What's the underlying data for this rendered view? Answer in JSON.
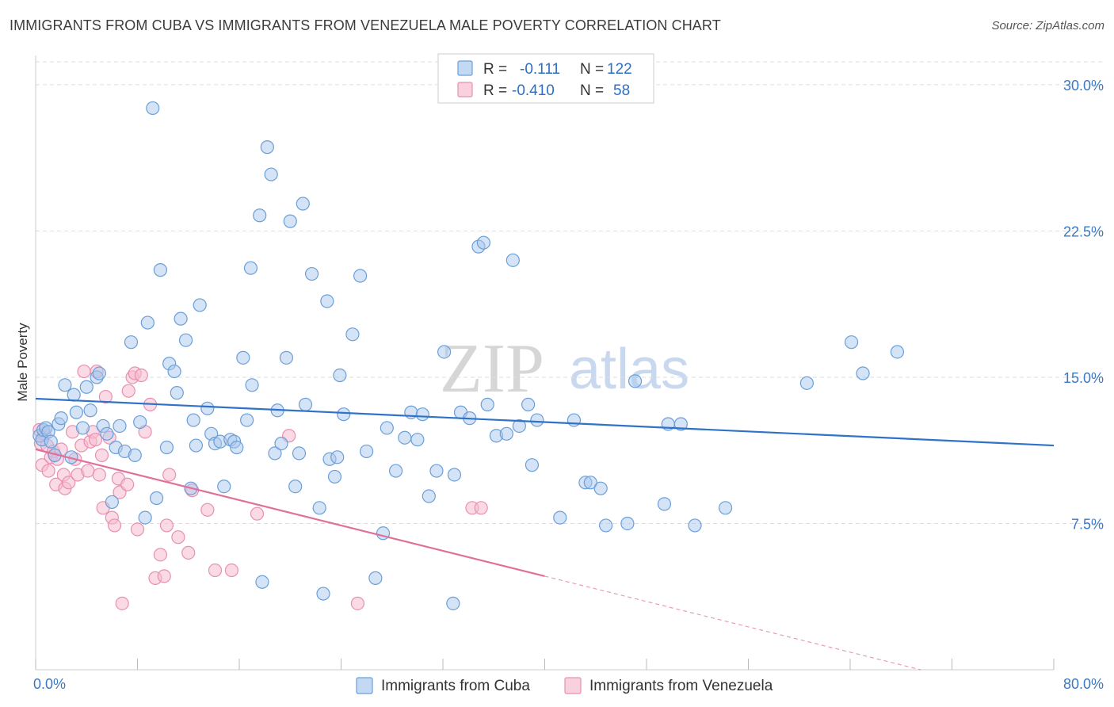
{
  "title": "IMMIGRANTS FROM CUBA VS IMMIGRANTS FROM VENEZUELA MALE POVERTY CORRELATION CHART",
  "source": "Source: ZipAtlas.com",
  "watermark": {
    "zip": "ZIP",
    "atlas": "atlas"
  },
  "colors": {
    "cuba_fill": "#a9c8ee",
    "cuba_stroke": "#6a9fd9",
    "cuba_line": "#2f72c8",
    "venezuela_fill": "#f5bcd0",
    "venezuela_stroke": "#e890b0",
    "venezuela_line": "#e0709a",
    "tick_label": "#3b78c4",
    "grid": "#dddddd"
  },
  "legend": {
    "rows": [
      {
        "r_label": "R =",
        "r_value": "-0.111",
        "n_label": "N =",
        "n_value": "122"
      },
      {
        "r_label": "R =",
        "r_value": "-0.410",
        "n_label": "N =",
        "n_value": "58"
      }
    ]
  },
  "bottom_legend": [
    "Immigrants from Cuba",
    "Immigrants from Venezuela"
  ],
  "chart_data": {
    "type": "scatter",
    "title": "IMMIGRANTS FROM CUBA VS IMMIGRANTS FROM VENEZUELA MALE POVERTY CORRELATION CHART",
    "xlabel": "",
    "ylabel": "Male Poverty",
    "xlim": [
      0,
      80
    ],
    "ylim": [
      0,
      31.5
    ],
    "x_tick_labels": [
      "0.0%",
      "80.0%"
    ],
    "y_ticks": [
      7.5,
      15.0,
      22.5,
      30.0
    ],
    "y_tick_labels": [
      "7.5%",
      "15.0%",
      "22.5%",
      "30.0%"
    ],
    "grid": true,
    "legend_position": "top-center",
    "series": [
      {
        "name": "Immigrants from Cuba",
        "r": -0.111,
        "n": 122,
        "trend": {
          "x": [
            0,
            80
          ],
          "y": [
            13.9,
            11.5
          ]
        },
        "points": [
          [
            0.3,
            12.0
          ],
          [
            0.5,
            11.8
          ],
          [
            0.6,
            12.3
          ],
          [
            0.8,
            12.4
          ],
          [
            1.0,
            12.2
          ],
          [
            1.2,
            11.7
          ],
          [
            1.5,
            11.0
          ],
          [
            1.8,
            12.6
          ],
          [
            2.0,
            12.9
          ],
          [
            2.3,
            14.6
          ],
          [
            2.8,
            10.9
          ],
          [
            3.0,
            14.1
          ],
          [
            3.2,
            13.2
          ],
          [
            3.7,
            12.4
          ],
          [
            4.0,
            14.5
          ],
          [
            4.3,
            13.3
          ],
          [
            4.8,
            15.0
          ],
          [
            5.0,
            15.2
          ],
          [
            5.3,
            12.5
          ],
          [
            5.6,
            12.1
          ],
          [
            6.0,
            8.6
          ],
          [
            6.3,
            11.4
          ],
          [
            6.6,
            12.5
          ],
          [
            7.0,
            11.2
          ],
          [
            7.5,
            16.8
          ],
          [
            7.8,
            11.0
          ],
          [
            8.2,
            12.7
          ],
          [
            8.6,
            7.8
          ],
          [
            8.8,
            17.8
          ],
          [
            9.2,
            28.8
          ],
          [
            9.5,
            8.8
          ],
          [
            9.8,
            20.5
          ],
          [
            10.3,
            11.4
          ],
          [
            10.5,
            15.7
          ],
          [
            10.9,
            15.3
          ],
          [
            11.1,
            14.2
          ],
          [
            11.4,
            18.0
          ],
          [
            11.8,
            16.9
          ],
          [
            12.2,
            9.3
          ],
          [
            12.4,
            12.8
          ],
          [
            12.6,
            11.5
          ],
          [
            12.9,
            18.7
          ],
          [
            13.5,
            13.4
          ],
          [
            13.8,
            12.1
          ],
          [
            14.1,
            11.6
          ],
          [
            14.5,
            11.7
          ],
          [
            14.8,
            9.4
          ],
          [
            15.3,
            11.8
          ],
          [
            15.6,
            11.7
          ],
          [
            15.8,
            11.4
          ],
          [
            16.3,
            16.0
          ],
          [
            16.6,
            12.8
          ],
          [
            16.9,
            20.6
          ],
          [
            17.0,
            14.6
          ],
          [
            17.6,
            23.3
          ],
          [
            17.8,
            4.5
          ],
          [
            18.2,
            26.8
          ],
          [
            18.5,
            25.4
          ],
          [
            18.8,
            11.1
          ],
          [
            19.0,
            13.3
          ],
          [
            19.3,
            11.6
          ],
          [
            19.7,
            16.0
          ],
          [
            20.0,
            23.0
          ],
          [
            20.4,
            9.4
          ],
          [
            20.7,
            11.1
          ],
          [
            21.0,
            23.9
          ],
          [
            21.2,
            13.6
          ],
          [
            21.7,
            20.3
          ],
          [
            22.3,
            8.3
          ],
          [
            22.6,
            3.9
          ],
          [
            22.9,
            18.9
          ],
          [
            23.1,
            10.8
          ],
          [
            23.5,
            9.9
          ],
          [
            23.7,
            10.9
          ],
          [
            23.9,
            15.1
          ],
          [
            24.2,
            13.1
          ],
          [
            24.9,
            17.2
          ],
          [
            25.5,
            20.2
          ],
          [
            26.0,
            11.2
          ],
          [
            26.7,
            4.7
          ],
          [
            27.3,
            7.0
          ],
          [
            27.6,
            12.4
          ],
          [
            28.3,
            10.2
          ],
          [
            29.0,
            11.9
          ],
          [
            29.5,
            13.2
          ],
          [
            30.0,
            11.8
          ],
          [
            30.4,
            13.1
          ],
          [
            30.9,
            8.9
          ],
          [
            31.5,
            10.2
          ],
          [
            32.1,
            16.3
          ],
          [
            32.8,
            3.4
          ],
          [
            32.9,
            10.0
          ],
          [
            33.4,
            13.2
          ],
          [
            34.1,
            12.9
          ],
          [
            34.8,
            21.7
          ],
          [
            35.2,
            21.9
          ],
          [
            35.5,
            13.6
          ],
          [
            36.2,
            12.0
          ],
          [
            37.0,
            12.1
          ],
          [
            37.5,
            21.0
          ],
          [
            38.0,
            12.5
          ],
          [
            38.7,
            13.6
          ],
          [
            39.0,
            10.5
          ],
          [
            39.4,
            12.8
          ],
          [
            41.2,
            7.8
          ],
          [
            42.3,
            12.8
          ],
          [
            43.2,
            9.6
          ],
          [
            43.6,
            9.6
          ],
          [
            44.4,
            9.3
          ],
          [
            44.8,
            7.4
          ],
          [
            46.5,
            7.5
          ],
          [
            47.1,
            14.8
          ],
          [
            49.4,
            8.5
          ],
          [
            49.7,
            12.6
          ],
          [
            50.7,
            12.6
          ],
          [
            51.8,
            7.4
          ],
          [
            54.2,
            8.3
          ],
          [
            60.6,
            14.7
          ],
          [
            64.1,
            16.8
          ],
          [
            65.0,
            15.2
          ],
          [
            67.7,
            16.3
          ]
        ]
      },
      {
        "name": "Immigrants from Venezuela",
        "r": -0.41,
        "n": 58,
        "trend": {
          "x": [
            0,
            40
          ],
          "y": [
            11.3,
            4.8
          ],
          "dashed_x": [
            40,
            80
          ],
          "dashed_y": [
            4.8,
            -1.7
          ]
        },
        "points": [
          [
            0.3,
            12.3
          ],
          [
            0.4,
            11.6
          ],
          [
            0.5,
            10.5
          ],
          [
            0.7,
            12.1
          ],
          [
            0.9,
            11.5
          ],
          [
            1.0,
            10.2
          ],
          [
            1.2,
            10.9
          ],
          [
            1.4,
            11.2
          ],
          [
            1.6,
            9.5
          ],
          [
            1.7,
            10.8
          ],
          [
            2.0,
            11.3
          ],
          [
            2.2,
            10.0
          ],
          [
            2.3,
            9.3
          ],
          [
            2.6,
            9.6
          ],
          [
            2.9,
            12.2
          ],
          [
            3.1,
            10.8
          ],
          [
            3.3,
            10.0
          ],
          [
            3.6,
            11.5
          ],
          [
            3.8,
            15.3
          ],
          [
            4.1,
            10.2
          ],
          [
            4.3,
            11.7
          ],
          [
            4.5,
            12.2
          ],
          [
            4.7,
            11.8
          ],
          [
            4.8,
            15.3
          ],
          [
            5.0,
            10.0
          ],
          [
            5.2,
            11.0
          ],
          [
            5.3,
            8.3
          ],
          [
            5.5,
            14.0
          ],
          [
            5.8,
            11.9
          ],
          [
            6.0,
            7.8
          ],
          [
            6.2,
            7.4
          ],
          [
            6.5,
            9.8
          ],
          [
            6.6,
            9.1
          ],
          [
            6.8,
            3.4
          ],
          [
            7.2,
            9.5
          ],
          [
            7.3,
            14.3
          ],
          [
            7.6,
            15.0
          ],
          [
            7.8,
            15.2
          ],
          [
            8.0,
            7.2
          ],
          [
            8.3,
            15.1
          ],
          [
            8.6,
            12.2
          ],
          [
            9.0,
            13.6
          ],
          [
            9.4,
            4.7
          ],
          [
            9.8,
            5.9
          ],
          [
            10.1,
            4.8
          ],
          [
            10.3,
            7.4
          ],
          [
            10.5,
            10.0
          ],
          [
            11.2,
            6.8
          ],
          [
            12.0,
            6.0
          ],
          [
            12.3,
            9.2
          ],
          [
            13.5,
            8.2
          ],
          [
            14.1,
            5.1
          ],
          [
            15.4,
            5.1
          ],
          [
            17.4,
            8.0
          ],
          [
            19.9,
            12.0
          ],
          [
            25.3,
            3.4
          ],
          [
            34.3,
            8.3
          ],
          [
            35.0,
            8.3
          ]
        ]
      }
    ]
  }
}
